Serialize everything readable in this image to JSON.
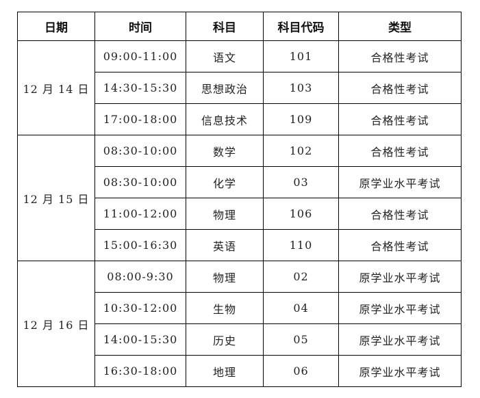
{
  "headers": [
    "日期",
    "时间",
    "科目",
    "科目代码",
    "类型"
  ],
  "groups": [
    {
      "date": "12 月 14 日",
      "rows": [
        {
          "time": "09:00-11:00",
          "subject": "语文",
          "code": "101",
          "type": "合格性考试"
        },
        {
          "time": "14:30-15:30",
          "subject": "思想政治",
          "code": "103",
          "type": "合格性考试"
        },
        {
          "time": "17:00-18:00",
          "subject": "信息技术",
          "code": "109",
          "type": "合格性考试"
        }
      ]
    },
    {
      "date": "12 月 15 日",
      "rows": [
        {
          "time": "08:30-10:00",
          "subject": "数学",
          "code": "102",
          "type": "合格性考试"
        },
        {
          "time": "08:30-10:00",
          "subject": "化学",
          "code": "03",
          "type": "原学业水平考试"
        },
        {
          "time": "11:00-12:00",
          "subject": "物理",
          "code": "106",
          "type": "合格性考试"
        },
        {
          "time": "15:00-16:30",
          "subject": "英语",
          "code": "110",
          "type": "合格性考试"
        }
      ]
    },
    {
      "date": "12 月 16 日",
      "rows": [
        {
          "time": "08:00-9:30",
          "subject": "物理",
          "code": "02",
          "type": "原学业水平考试"
        },
        {
          "time": "10:30-12:00",
          "subject": "生物",
          "code": "04",
          "type": "原学业水平考试"
        },
        {
          "time": "14:00-15:30",
          "subject": "历史",
          "code": "05",
          "type": "原学业水平考试"
        },
        {
          "time": "16:30-18:00",
          "subject": "地理",
          "code": "06",
          "type": "原学业水平考试"
        }
      ]
    }
  ]
}
